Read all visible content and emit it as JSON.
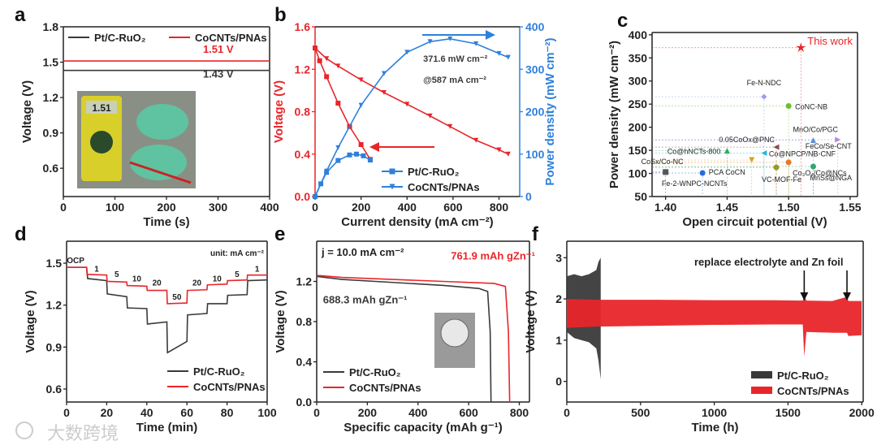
{
  "colors": {
    "red": "#e8262a",
    "blue": "#2f80db",
    "black": "#3a3a3a"
  },
  "watermark": "大数跨境",
  "chart_data": [
    {
      "panel": "a",
      "type": "line",
      "xlabel": "Time (s)",
      "ylabel": "Voltage (V)",
      "xlim": [
        0,
        400
      ],
      "ylim": [
        0.36,
        1.8
      ],
      "xticks": [
        0,
        100,
        200,
        300,
        400
      ],
      "yticks": [
        0.6,
        0.9,
        1.2,
        1.5,
        1.8
      ],
      "legend": "top",
      "series": [
        {
          "name": "Pt/C-RuO₂",
          "color": "black",
          "x": [
            0,
            400
          ],
          "y": [
            1.43,
            1.43
          ]
        },
        {
          "name": "CoCNTs/PNAs",
          "color": "red",
          "x": [
            0,
            400
          ],
          "y": [
            1.51,
            1.51
          ]
        }
      ],
      "annotations": [
        {
          "text": "1.51 V",
          "x": 330,
          "y": 1.58,
          "color": "red"
        },
        {
          "text": "1.43 V",
          "x": 330,
          "y": 1.37,
          "color": "black"
        }
      ],
      "inset": {
        "reading": "1.51"
      }
    },
    {
      "panel": "b",
      "type": "line",
      "xlabel": "Current density (mA cm⁻²)",
      "ylabel": "Voltage (V)",
      "y2label": "Power density (mW cm⁻²)",
      "xlim": [
        0,
        890
      ],
      "ylim": [
        0,
        1.6
      ],
      "y2lim": [
        0,
        400
      ],
      "xticks": [
        0,
        200,
        400,
        600,
        800
      ],
      "yticks": [
        0,
        0.4,
        0.8,
        1.2,
        1.6
      ],
      "y2ticks": [
        0,
        100,
        200,
        300,
        400
      ],
      "legend": "bottom-center",
      "series": [
        {
          "name": "Pt/C-RuO₂ voltage",
          "color": "red",
          "axis": "y",
          "marker": "square",
          "x": [
            0,
            20,
            50,
            100,
            150,
            200,
            240
          ],
          "y": [
            1.4,
            1.28,
            1.13,
            0.88,
            0.66,
            0.49,
            0.35
          ]
        },
        {
          "name": "CoCNTs/PNAs voltage",
          "color": "red",
          "axis": "y",
          "marker": "tri-down",
          "x": [
            0,
            50,
            100,
            200,
            300,
            400,
            500,
            587,
            700,
            800,
            840
          ],
          "y": [
            1.4,
            1.3,
            1.23,
            1.1,
            0.98,
            0.87,
            0.76,
            0.66,
            0.53,
            0.44,
            0.4
          ]
        },
        {
          "name": "Pt/C-RuO₂",
          "color": "blue",
          "axis": "y2",
          "marker": "square",
          "legend": true,
          "x": [
            0,
            25,
            50,
            100,
            150,
            180,
            210,
            240
          ],
          "y": [
            0,
            30,
            57,
            85,
            98,
            100,
            96,
            86
          ]
        },
        {
          "name": "CoCNTs/PNAs",
          "color": "blue",
          "axis": "y2",
          "marker": "tri-down",
          "legend": true,
          "x": [
            0,
            50,
            100,
            200,
            300,
            400,
            500,
            587,
            700,
            800,
            840
          ],
          "y": [
            0,
            60,
            115,
            215,
            290,
            340,
            365,
            371.6,
            360,
            337,
            328
          ]
        }
      ],
      "annotations": [
        {
          "text": "371.6 mW cm⁻²",
          "x": 470,
          "y": 1.27,
          "color": "black"
        },
        {
          "text": "@587 mA cm⁻²",
          "x": 470,
          "y": 1.07,
          "color": "black"
        }
      ]
    },
    {
      "panel": "c",
      "type": "scatter",
      "xlabel": "Open circuit potential (V)",
      "ylabel": "Power density (mW cm⁻²)",
      "xlim": [
        1.389,
        1.556
      ],
      "ylim": [
        50,
        405
      ],
      "xticks": [
        1.4,
        1.45,
        1.5,
        1.55
      ],
      "yticks": [
        50,
        100,
        150,
        200,
        250,
        300,
        350,
        400
      ],
      "points": [
        {
          "label": "This work",
          "x": 1.51,
          "y": 372,
          "color": "#e8262a",
          "marker": "star"
        },
        {
          "label": "Fe-N-NDC",
          "x": 1.48,
          "y": 266,
          "color": "#9a9cf0",
          "marker": "diamond"
        },
        {
          "label": "CoNC-NB",
          "x": 1.5,
          "y": 246,
          "color": "#6cbf2a",
          "marker": "circle"
        },
        {
          "label": "MnO/Co/PGC",
          "x": 1.52,
          "y": 172,
          "color": "#5a8fd8",
          "marker": "tri-up"
        },
        {
          "label": "FeCo/Se-CNT",
          "x": 1.54,
          "y": 173,
          "color": "#b884e8",
          "marker": "tri-right"
        },
        {
          "label": "0.05CoOx@PNC",
          "x": 1.49,
          "y": 157,
          "color": "#8a4a4a",
          "marker": "tri-left"
        },
        {
          "label": "Co@hNCTs-800",
          "x": 1.45,
          "y": 149,
          "color": "#2eaa5c",
          "marker": "tri-up"
        },
        {
          "label": "Co@NPCP/NB-CNF",
          "x": 1.48,
          "y": 144,
          "color": "#22b8d8",
          "marker": "tri-left"
        },
        {
          "label": "PCA CoCN",
          "x": 1.47,
          "y": 129,
          "color": "#d8a21a",
          "marker": "tri-down"
        },
        {
          "label": "Co₃O₄/Co@NCs",
          "x": 1.5,
          "y": 124,
          "color": "#e87a22",
          "marker": "circle"
        },
        {
          "label": "CoSx/Co-NC",
          "x": 1.4,
          "y": 103,
          "color": "#555555",
          "marker": "square"
        },
        {
          "label": "Fe-2-WNPC-NCNTs",
          "x": 1.43,
          "y": 101,
          "color": "#2a6ae0",
          "marker": "circle"
        },
        {
          "label": "VC-MOF-Fe",
          "x": 1.49,
          "y": 113,
          "color": "#9a9a22",
          "marker": "circle"
        },
        {
          "label": "MnSs@NGA",
          "x": 1.52,
          "y": 115,
          "color": "#2ea870",
          "marker": "circle"
        }
      ]
    },
    {
      "panel": "d",
      "type": "line",
      "xlabel": "Time (min)",
      "ylabel": "Voltage (V)",
      "xlim": [
        0,
        100
      ],
      "ylim": [
        0.507,
        1.657
      ],
      "xticks": [
        0,
        20,
        40,
        60,
        80,
        100
      ],
      "yticks": [
        0.6,
        0.9,
        1.2,
        1.5
      ],
      "legend": "bottom-right",
      "unit_note": "unit: mA cm⁻²",
      "series": [
        {
          "name": "Pt/C-RuO₂",
          "color": "black",
          "x": [
            0,
            10,
            10.5,
            20,
            20.3,
            30,
            30.3,
            40,
            40.3,
            50,
            50.3,
            60,
            60.3,
            70,
            70.3,
            80,
            80.3,
            90,
            90.3,
            100
          ],
          "y": [
            1.47,
            1.47,
            1.39,
            1.375,
            1.28,
            1.26,
            1.18,
            1.175,
            1.065,
            1.08,
            0.86,
            0.94,
            1.13,
            1.14,
            1.21,
            1.21,
            1.27,
            1.275,
            1.375,
            1.38
          ]
        },
        {
          "name": "CoCNTs/PNAs",
          "color": "red",
          "x": [
            0,
            10,
            10.2,
            20,
            20.2,
            30,
            30.2,
            40,
            40.2,
            50,
            50.2,
            60,
            60.2,
            70,
            70.2,
            80,
            80.2,
            90,
            90.2,
            100
          ],
          "y": [
            1.47,
            1.47,
            1.42,
            1.415,
            1.37,
            1.365,
            1.34,
            1.335,
            1.305,
            1.305,
            1.21,
            1.215,
            1.305,
            1.31,
            1.345,
            1.35,
            1.375,
            1.38,
            1.415,
            1.415
          ]
        }
      ],
      "step_labels": [
        {
          "text": "OCP",
          "x": 4.5,
          "y": 1.5
        },
        {
          "text": "1",
          "x": 15,
          "y": 1.44
        },
        {
          "text": "5",
          "x": 25,
          "y": 1.4
        },
        {
          "text": "10",
          "x": 35,
          "y": 1.37
        },
        {
          "text": "20",
          "x": 45,
          "y": 1.34
        },
        {
          "text": "50",
          "x": 55,
          "y": 1.24
        },
        {
          "text": "20",
          "x": 65,
          "y": 1.34
        },
        {
          "text": "10",
          "x": 75,
          "y": 1.37
        },
        {
          "text": "5",
          "x": 85,
          "y": 1.4
        },
        {
          "text": "1",
          "x": 95,
          "y": 1.44
        }
      ]
    },
    {
      "panel": "e",
      "type": "line",
      "xlabel": "Specific capacity (mAh g⁻¹)",
      "ylabel": "Voltage (V)",
      "xlim": [
        0,
        840
      ],
      "ylim": [
        0,
        1.6
      ],
      "xticks": [
        0,
        200,
        400,
        600,
        800
      ],
      "yticks": [
        0.0,
        0.4,
        0.8,
        1.2
      ],
      "legend": "bottom-left",
      "current_note": "j = 10.0 mA cm⁻²",
      "series": [
        {
          "name": "Pt/C-RuO₂",
          "color": "black",
          "x": [
            0,
            100,
            300,
            500,
            640,
            675,
            685,
            688.3
          ],
          "y": [
            1.25,
            1.22,
            1.19,
            1.16,
            1.13,
            1.1,
            0.7,
            0
          ]
        },
        {
          "name": "CoCNTs/PNAs",
          "color": "red",
          "x": [
            0,
            100,
            300,
            500,
            700,
            745,
            757,
            761.9
          ],
          "y": [
            1.26,
            1.24,
            1.22,
            1.2,
            1.18,
            1.15,
            0.7,
            0
          ]
        }
      ],
      "annotations": [
        {
          "text": "761.9 mAh gZn⁻¹",
          "x": 530,
          "y": 1.42,
          "color": "red"
        },
        {
          "text": "688.3 mAh gZn⁻¹",
          "x": 25,
          "y": 0.98,
          "color": "black"
        }
      ]
    },
    {
      "panel": "f",
      "type": "area",
      "xlabel": "Time (h)",
      "ylabel": "Voltage (V)",
      "xlim": [
        0,
        2010
      ],
      "ylim": [
        -0.5,
        3.4
      ],
      "xticks": [
        0,
        500,
        1000,
        1500,
        2000
      ],
      "yticks": [
        0,
        1,
        2,
        3
      ],
      "legend": "bottom-right",
      "bands": [
        {
          "name": "Pt/C-RuO₂",
          "color": "black",
          "x": [
            0,
            50,
            100,
            150,
            200,
            215,
            230
          ],
          "upper": [
            2.55,
            2.6,
            2.55,
            2.6,
            2.7,
            2.9,
            3.0
          ],
          "lower": [
            1.2,
            1.05,
            1.0,
            0.95,
            0.8,
            0.5,
            0.05
          ]
        },
        {
          "name": "CoCNTs/PNAs",
          "color": "red",
          "x": [
            0,
            200,
            600,
            1000,
            1400,
            1600,
            1610,
            1625,
            1800,
            1900,
            1910,
            2000
          ],
          "upper": [
            2.0,
            1.98,
            1.98,
            1.97,
            1.97,
            1.96,
            2.1,
            1.96,
            1.95,
            2.05,
            1.95,
            1.95
          ],
          "lower": [
            1.3,
            1.33,
            1.35,
            1.37,
            1.38,
            1.38,
            0.6,
            1.2,
            1.18,
            1.18,
            1.1,
            1.12
          ]
        }
      ],
      "annotation": {
        "text": "replace electrolyte and Zn foil",
        "arrows_at": [
          1610,
          1900
        ]
      }
    }
  ]
}
